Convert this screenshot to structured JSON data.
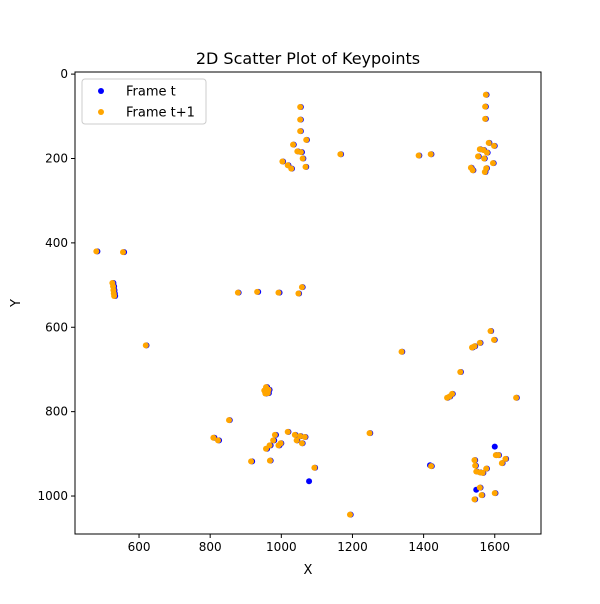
{
  "chart_data": {
    "type": "scatter",
    "title": "2D Scatter Plot of Keypoints",
    "xlabel": "X",
    "ylabel": "Y",
    "xlim": [
      420,
      1730
    ],
    "ylim": [
      1090,
      -5
    ],
    "y_inverted": true,
    "grid": false,
    "legend_position": "top-left",
    "x_ticks": [
      600,
      800,
      1000,
      1200,
      1400,
      1600
    ],
    "y_ticks": [
      0,
      200,
      400,
      600,
      800,
      1000
    ],
    "series": [
      {
        "name": "Frame t",
        "color": "#0000ff",
        "points": [
          [
            483,
            420
          ],
          [
            558,
            422
          ],
          [
            528,
            495
          ],
          [
            530,
            503
          ],
          [
            531,
            512
          ],
          [
            532,
            520
          ],
          [
            533,
            526
          ],
          [
            621,
            643
          ],
          [
            880,
            518
          ],
          [
            935,
            516
          ],
          [
            995,
            518
          ],
          [
            1050,
            520
          ],
          [
            1060,
            505
          ],
          [
            1055,
            78
          ],
          [
            1055,
            108
          ],
          [
            1055,
            135
          ],
          [
            1072,
            156
          ],
          [
            1035,
            167
          ],
          [
            1047,
            183
          ],
          [
            1058,
            185
          ],
          [
            1062,
            200
          ],
          [
            1005,
            207
          ],
          [
            1020,
            216
          ],
          [
            1030,
            224
          ],
          [
            1070,
            220
          ],
          [
            1168,
            190
          ],
          [
            1388,
            193
          ],
          [
            1422,
            190
          ],
          [
            1577,
            49
          ],
          [
            1575,
            77
          ],
          [
            1575,
            106
          ],
          [
            1585,
            163
          ],
          [
            1600,
            170
          ],
          [
            1560,
            178
          ],
          [
            1570,
            180
          ],
          [
            1580,
            186
          ],
          [
            1555,
            195
          ],
          [
            1572,
            200
          ],
          [
            1597,
            211
          ],
          [
            1535,
            222
          ],
          [
            1540,
            228
          ],
          [
            1578,
            223
          ],
          [
            1574,
            232
          ],
          [
            1590,
            609
          ],
          [
            1600,
            630
          ],
          [
            1560,
            637
          ],
          [
            1545,
            645
          ],
          [
            1538,
            648
          ],
          [
            1340,
            658
          ],
          [
            1505,
            706
          ],
          [
            1482,
            758
          ],
          [
            1475,
            764
          ],
          [
            1468,
            767
          ],
          [
            1662,
            767
          ],
          [
            960,
            742
          ],
          [
            955,
            750
          ],
          [
            967,
            748
          ],
          [
            965,
            756
          ],
          [
            958,
            757
          ],
          [
            855,
            820
          ],
          [
            985,
            855
          ],
          [
            1020,
            848
          ],
          [
            1040,
            855
          ],
          [
            1055,
            858
          ],
          [
            1068,
            860
          ],
          [
            1045,
            868
          ],
          [
            1060,
            875
          ],
          [
            980,
            868
          ],
          [
            970,
            880
          ],
          [
            960,
            888
          ],
          [
            995,
            880
          ],
          [
            1000,
            875
          ],
          [
            812,
            862
          ],
          [
            825,
            868
          ],
          [
            918,
            918
          ],
          [
            970,
            916
          ],
          [
            1078,
            965
          ],
          [
            1095,
            933
          ],
          [
            1195,
            1044
          ],
          [
            1250,
            851
          ],
          [
            1600,
            883
          ],
          [
            1605,
            903
          ],
          [
            1612,
            903
          ],
          [
            1545,
            915
          ],
          [
            1547,
            928
          ],
          [
            1550,
            942
          ],
          [
            1560,
            944
          ],
          [
            1568,
            945
          ],
          [
            1578,
            935
          ],
          [
            1632,
            912
          ],
          [
            1622,
            922
          ],
          [
            1423,
            929
          ],
          [
            1418,
            927
          ],
          [
            1560,
            980
          ],
          [
            1548,
            985
          ],
          [
            1565,
            998
          ],
          [
            1602,
            993
          ],
          [
            1545,
            1008
          ]
        ]
      },
      {
        "name": "Frame t+1",
        "color": "#ffa500",
        "points": [
          [
            480,
            420
          ],
          [
            555,
            422
          ],
          [
            525,
            495
          ],
          [
            527,
            503
          ],
          [
            528,
            512
          ],
          [
            529,
            520
          ],
          [
            530,
            526
          ],
          [
            619,
            643
          ],
          [
            878,
            518
          ],
          [
            932,
            516
          ],
          [
            992,
            518
          ],
          [
            1048,
            520
          ],
          [
            1058,
            505
          ],
          [
            1053,
            78
          ],
          [
            1053,
            108
          ],
          [
            1053,
            135
          ],
          [
            1070,
            156
          ],
          [
            1033,
            167
          ],
          [
            1045,
            183
          ],
          [
            1055,
            185
          ],
          [
            1060,
            200
          ],
          [
            1003,
            207
          ],
          [
            1018,
            216
          ],
          [
            1028,
            224
          ],
          [
            1068,
            220
          ],
          [
            1166,
            190
          ],
          [
            1386,
            193
          ],
          [
            1420,
            190
          ],
          [
            1575,
            49
          ],
          [
            1573,
            77
          ],
          [
            1573,
            106
          ],
          [
            1583,
            163
          ],
          [
            1598,
            170
          ],
          [
            1558,
            178
          ],
          [
            1568,
            180
          ],
          [
            1578,
            186
          ],
          [
            1553,
            195
          ],
          [
            1570,
            200
          ],
          [
            1595,
            211
          ],
          [
            1533,
            222
          ],
          [
            1538,
            228
          ],
          [
            1576,
            223
          ],
          [
            1572,
            232
          ],
          [
            1588,
            609
          ],
          [
            1598,
            630
          ],
          [
            1558,
            637
          ],
          [
            1543,
            645
          ],
          [
            1536,
            648
          ],
          [
            1338,
            658
          ],
          [
            1503,
            706
          ],
          [
            1480,
            758
          ],
          [
            1473,
            764
          ],
          [
            1466,
            767
          ],
          [
            1660,
            767
          ],
          [
            957,
            742
          ],
          [
            952,
            750
          ],
          [
            964,
            748
          ],
          [
            962,
            756
          ],
          [
            955,
            757
          ],
          [
            853,
            820
          ],
          [
            982,
            855
          ],
          [
            1018,
            848
          ],
          [
            1038,
            855
          ],
          [
            1053,
            858
          ],
          [
            1066,
            860
          ],
          [
            1043,
            868
          ],
          [
            1058,
            875
          ],
          [
            977,
            868
          ],
          [
            967,
            880
          ],
          [
            957,
            888
          ],
          [
            992,
            880
          ],
          [
            998,
            875
          ],
          [
            809,
            862
          ],
          [
            822,
            868
          ],
          [
            915,
            918
          ],
          [
            968,
            916
          ],
          [
            1093,
            933
          ],
          [
            1193,
            1044
          ],
          [
            1248,
            851
          ],
          [
            1603,
            903
          ],
          [
            1610,
            903
          ],
          [
            1543,
            915
          ],
          [
            1545,
            928
          ],
          [
            1548,
            942
          ],
          [
            1558,
            944
          ],
          [
            1566,
            945
          ],
          [
            1576,
            935
          ],
          [
            1630,
            912
          ],
          [
            1620,
            922
          ],
          [
            1421,
            929
          ],
          [
            1558,
            980
          ],
          [
            1563,
            998
          ],
          [
            1600,
            993
          ],
          [
            1543,
            1008
          ]
        ]
      }
    ]
  }
}
